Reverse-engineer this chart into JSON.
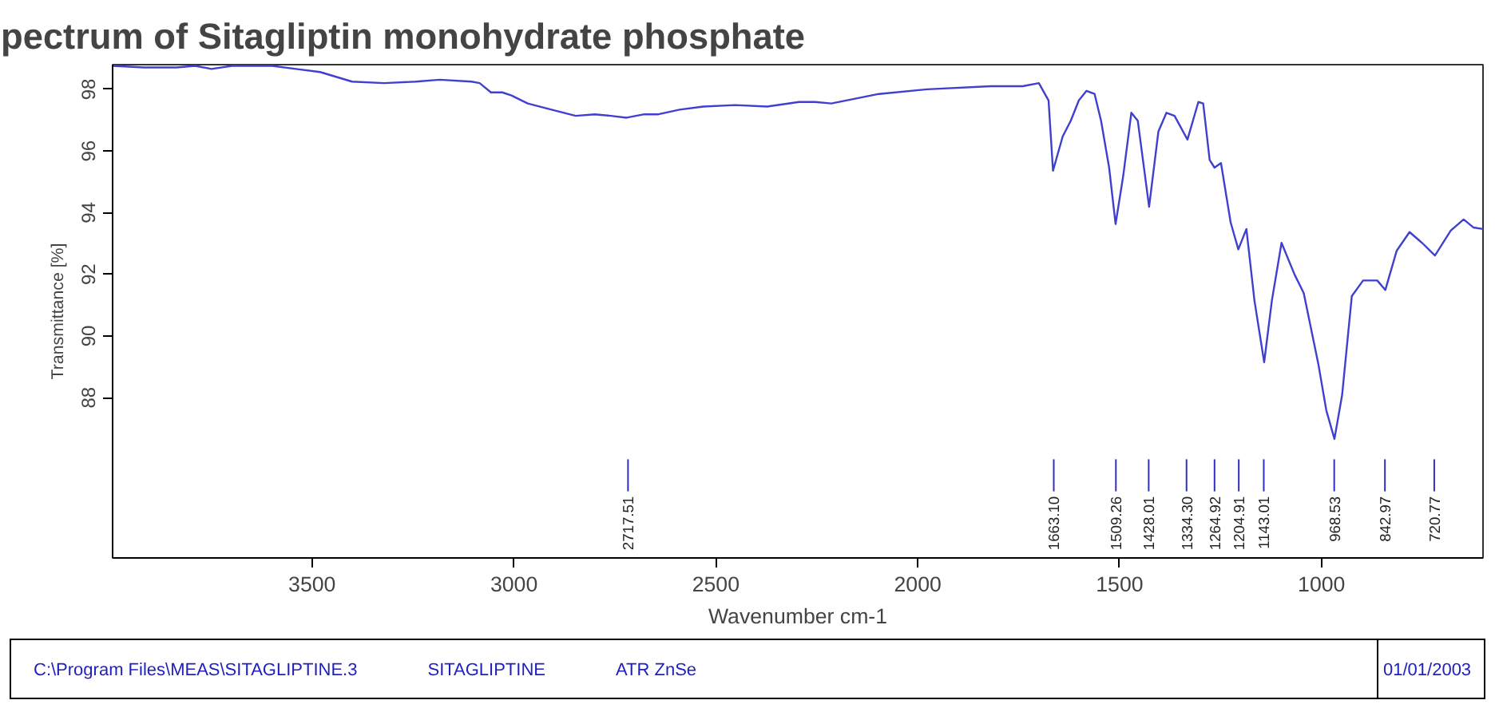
{
  "chart_data": {
    "type": "line",
    "title": "pectrum of Sitagliptin monohydrate phosphate",
    "xlabel": "Wavenumber cm-1",
    "ylabel": "Transmittance [%]",
    "xlim": [
      3994,
      600
    ],
    "ylim": [
      82.8,
      98.8
    ],
    "xticks": [
      3500,
      3000,
      2500,
      2000,
      1500,
      1000
    ],
    "yticks": [
      88,
      90,
      92,
      94,
      96,
      98
    ],
    "grid": false,
    "x": [
      3994,
      3916,
      3836,
      3789,
      3749,
      3698,
      3599,
      3540,
      3480,
      3401,
      3322,
      3243,
      3184,
      3105,
      3085,
      3057,
      3029,
      3006,
      2966,
      2907,
      2847,
      2800,
      2760,
      2721,
      2677,
      2642,
      2590,
      2531,
      2452,
      2373,
      2294,
      2254,
      2214,
      2096,
      1977,
      1819,
      1740,
      1700,
      1676,
      1665,
      1641,
      1621,
      1601,
      1582,
      1562,
      1546,
      1526,
      1510,
      1491,
      1471,
      1455,
      1427,
      1404,
      1384,
      1364,
      1332,
      1305,
      1293,
      1277,
      1265,
      1249,
      1225,
      1206,
      1186,
      1166,
      1142,
      1123,
      1099,
      1067,
      1044,
      1008,
      988,
      968,
      949,
      925,
      897,
      862,
      842,
      814,
      782,
      751,
      719,
      680,
      648,
      624,
      600
    ],
    "series": [
      {
        "color": "#4040d0",
        "values": [
          98.76,
          98.71,
          98.71,
          98.76,
          98.66,
          98.76,
          98.76,
          98.66,
          98.56,
          98.25,
          98.2,
          98.25,
          98.31,
          98.25,
          98.2,
          97.9,
          97.9,
          97.8,
          97.54,
          97.34,
          97.14,
          97.19,
          97.14,
          97.08,
          97.19,
          97.19,
          97.34,
          97.44,
          97.49,
          97.44,
          97.59,
          97.59,
          97.54,
          97.85,
          98.0,
          98.1,
          98.1,
          98.2,
          97.64,
          95.36,
          96.47,
          96.98,
          97.64,
          97.95,
          97.85,
          96.98,
          95.46,
          93.63,
          95.2,
          97.24,
          96.98,
          94.19,
          96.63,
          97.24,
          97.14,
          96.37,
          97.59,
          97.54,
          95.71,
          95.46,
          95.61,
          93.68,
          92.81,
          93.47,
          91.14,
          89.15,
          91.14,
          93.02,
          92.0,
          91.39,
          89.1,
          87.58,
          86.66,
          88.08,
          91.29,
          91.8,
          91.8,
          91.49,
          92.76,
          93.37,
          93.02,
          92.61,
          93.42,
          93.78,
          93.52,
          93.47
        ]
      }
    ],
    "annotations": [
      {
        "text": "2717.51",
        "x": 2717.51
      },
      {
        "text": "1663.10",
        "x": 1663.1
      },
      {
        "text": "1509.26",
        "x": 1509.26
      },
      {
        "text": "1428.01",
        "x": 1428.01
      },
      {
        "text": "1334.30",
        "x": 1334.3
      },
      {
        "text": "1264.92",
        "x": 1264.92
      },
      {
        "text": "1204.91",
        "x": 1204.91
      },
      {
        "text": "1143.01",
        "x": 1143.01
      },
      {
        "text": "968.53",
        "x": 968.53
      },
      {
        "text": "842.97",
        "x": 842.97
      },
      {
        "text": "720.77",
        "x": 720.77
      },
      "C:\\Program Files\\MEAS\\SITAGLIPTINE.3",
      "SITAGLIPTINE",
      "ATR ZnSe",
      "01/01/2003"
    ]
  }
}
